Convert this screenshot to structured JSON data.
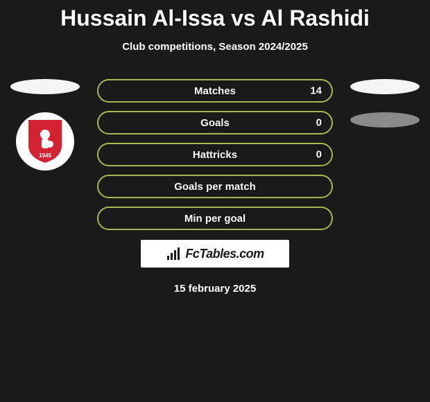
{
  "header": {
    "title": "Hussain Al-Issa vs Al Rashidi",
    "subtitle": "Club competitions, Season 2024/2025"
  },
  "left": {
    "ellipses": [
      {
        "color": "#f5f5f5"
      }
    ],
    "badge": {
      "shield_fill": "#d32232",
      "shield_stroke": "#ffffff",
      "inner_fill": "#ffffff",
      "year_text": "1945",
      "year_color": "#ffffff"
    }
  },
  "right": {
    "ellipses": [
      {
        "color": "#f5f5f5"
      },
      {
        "color": "#8a8a8a"
      }
    ]
  },
  "stats": [
    {
      "label": "Matches",
      "value_right": "14",
      "border_color": "#a6b84f",
      "fill_color": "#1a1a1a"
    },
    {
      "label": "Goals",
      "value_right": "0",
      "border_color": "#a6b84f",
      "fill_color": "#1a1a1a"
    },
    {
      "label": "Hattricks",
      "value_right": "0",
      "border_color": "#a6b84f",
      "fill_color": "#1a1a1a"
    },
    {
      "label": "Goals per match",
      "value_right": "",
      "border_color": "#a6b84f",
      "fill_color": "#1a1a1a"
    },
    {
      "label": "Min per goal",
      "value_right": "",
      "border_color": "#a6b84f",
      "fill_color": "#1a1a1a"
    }
  ],
  "styling": {
    "background_color": "#1a1a1a",
    "pill_width": 340,
    "pill_height": 34,
    "pill_border_radius": 17,
    "pill_border_width": 2,
    "title_fontsize": 32,
    "subtitle_fontsize": 15,
    "stat_fontsize": 15,
    "text_color": "#ffffff"
  },
  "branding": {
    "text": "FcTables.com",
    "background_color": "#ffffff",
    "text_color": "#1a1a1a",
    "icon_color": "#1a1a1a"
  },
  "footer": {
    "date": "15 february 2025"
  }
}
